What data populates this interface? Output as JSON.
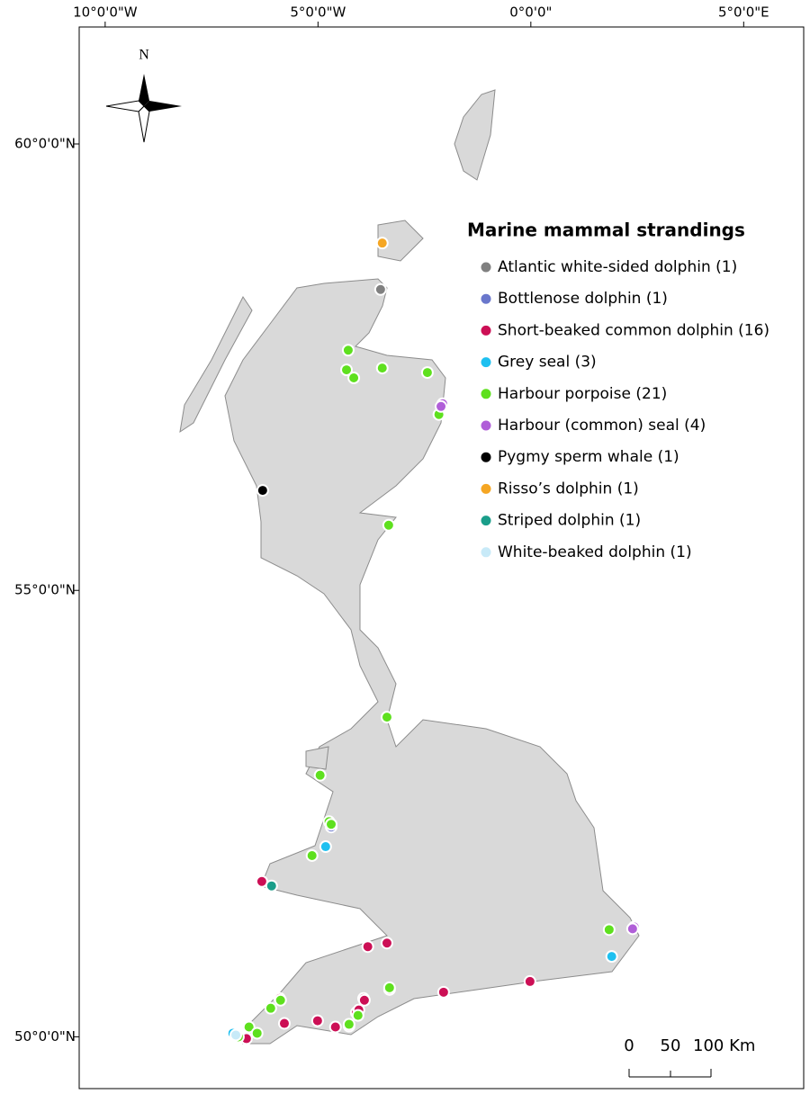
{
  "chart_data": {
    "type": "map",
    "xlim": [
      -10.61,
      6.41
    ],
    "ylim": [
      49.42,
      61.31
    ],
    "xticks": [
      {
        "value": -10,
        "label": "10°0'0\"W"
      },
      {
        "value": -5,
        "label": "5°0'0\"W"
      },
      {
        "value": 0,
        "label": "0°0'0\""
      },
      {
        "value": 5,
        "label": "5°0'0\"E"
      }
    ],
    "yticks": [
      {
        "value": 60,
        "label": "60°0'0\"N"
      },
      {
        "value": 55,
        "label": "55°0'0\"N"
      },
      {
        "value": 50,
        "label": "50°0'0\"N"
      }
    ],
    "north_label": "N",
    "legend_title": "Marine mammal strandings",
    "scale_labels": [
      "0",
      "50",
      "100 Km"
    ],
    "series": [
      {
        "name": "Atlantic white-sided dolphin  (1)",
        "color": "#808080",
        "lon": [
          -3.53
        ],
        "lat": [
          58.37
        ]
      },
      {
        "name": "Bottlenose dolphin (1)",
        "color": "#6a77cc",
        "lon": [
          -4.69
        ],
        "lat": [
          52.35
        ]
      },
      {
        "name": "Short-beaked common dolphin (16)",
        "color": "#cc0f55",
        "lon": [
          -6.32,
          -3.83,
          -3.38,
          -3.32,
          -2.05,
          -0.02,
          -5.9,
          -3.93,
          -4.1,
          -5.79,
          -5.01,
          -4.59,
          -4.27,
          -6.68,
          -4.04,
          -3.91
        ],
        "lat": [
          51.74,
          51.01,
          51.05,
          50.53,
          50.5,
          50.62,
          50.43,
          50.43,
          50.27,
          50.15,
          50.18,
          50.11,
          50.12,
          49.98,
          50.3,
          50.41
        ]
      },
      {
        "name": "Grey seal (3)",
        "color": "#1ec0f0",
        "lon": [
          -4.82,
          1.9,
          -7.0
        ],
        "lat": [
          52.13,
          50.9,
          50.04
        ]
      },
      {
        "name": "Harbour porpoise (21)",
        "color": "#5ee01e",
        "lon": [
          -4.29,
          -4.33,
          -4.16,
          -3.49,
          -2.43,
          -2.16,
          -3.34,
          -3.38,
          -4.95,
          -4.74,
          -5.14,
          1.84,
          -6.11,
          -6.62,
          -6.87,
          -4.69,
          -4.06,
          -5.88,
          -6.43,
          -4.27,
          -3.32
        ],
        "lat": [
          57.69,
          57.47,
          57.38,
          57.49,
          57.44,
          56.97,
          55.73,
          53.58,
          52.93,
          52.41,
          52.03,
          51.2,
          50.32,
          50.11,
          50.0,
          52.38,
          50.24,
          50.41,
          50.04,
          50.14,
          50.55
        ]
      },
      {
        "name": "Harbour (common) seal (4)",
        "color": "#b05ed8",
        "lon": [
          -2.07,
          2.43,
          -2.11,
          2.39
        ],
        "lat": [
          57.09,
          51.23,
          57.06,
          51.21
        ]
      },
      {
        "name": "Pygmy sperm whale (1)",
        "color": "#000000",
        "lon": [
          -6.3
        ],
        "lat": [
          56.12
        ]
      },
      {
        "name": "Risso’s dolphin (1)",
        "color": "#f5a623",
        "lon": [
          -3.49
        ],
        "lat": [
          58.89
        ]
      },
      {
        "name": "Striped dolphin (1)",
        "color": "#1a9e8a",
        "lon": [
          -6.09
        ],
        "lat": [
          51.69
        ]
      },
      {
        "name": "White-beaked dolphin (1)",
        "color": "#c8eaf8",
        "lon": [
          -6.93
        ],
        "lat": [
          50.02
        ]
      }
    ]
  }
}
